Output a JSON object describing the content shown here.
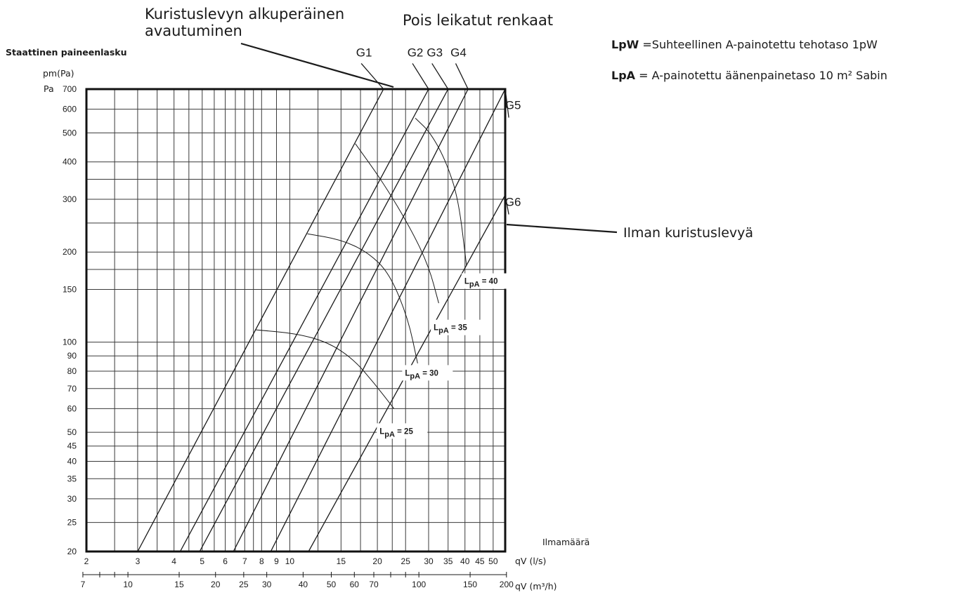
{
  "annotations": {
    "original_opening": "Kuristuslevyn alkuperäinen\navautuminen",
    "cut_rings": "Pois leikatut renkaat",
    "y_axis_title": "Staattinen paineenlasku",
    "y_unit_top": "pm(Pa)",
    "y_unit_left": "Pa",
    "x_axis_title": "Ilmamäärä",
    "x_unit_ls": "qV (l/s)",
    "x_unit_m3h": "qV (m³/h)",
    "without_plate": "Ilman kuristuslevyä"
  },
  "legend": {
    "lpw_symbol": "LpW",
    "lpw_text": "=Suhteellinen A-painotettu tehotaso 1pW",
    "lpa_symbol": "LpA",
    "lpa_text": "= A-painotettu äänenpainetaso  10 m² Sabin"
  },
  "chart_data": {
    "type": "line",
    "xscale": "log",
    "yscale": "log",
    "x_unit": "l/s",
    "y_unit": "Pa",
    "xlim": [
      2,
      55
    ],
    "ylim": [
      20,
      700
    ],
    "grid": true,
    "x_ticks_ls": [
      2,
      3,
      4,
      5,
      6,
      7,
      8,
      9,
      10,
      15,
      20,
      25,
      30,
      35,
      40,
      45,
      50
    ],
    "x_minor_grid_ls": [
      2.5,
      3.5,
      4.5,
      5.5,
      6.5,
      7.5,
      12.5,
      17.5,
      22.5
    ],
    "x_ticks_m3h": [
      7,
      10,
      15,
      20,
      25,
      30,
      40,
      50,
      60,
      70,
      100,
      150,
      200
    ],
    "x_minor_m3h": [
      8,
      9,
      80,
      90
    ],
    "y_ticks": [
      20,
      25,
      30,
      35,
      40,
      45,
      50,
      60,
      70,
      80,
      90,
      100,
      150,
      200,
      300,
      400,
      500,
      600,
      700
    ],
    "y_minor_grid": [
      175,
      250,
      350
    ],
    "series": [
      {
        "name": "G1",
        "values": [
          [
            3.0,
            20
          ],
          [
            21.0,
            700
          ]
        ]
      },
      {
        "name": "G2",
        "values": [
          [
            4.2,
            20
          ],
          [
            30.0,
            700
          ]
        ]
      },
      {
        "name": "G3",
        "values": [
          [
            4.9,
            20
          ],
          [
            35.0,
            700
          ]
        ]
      },
      {
        "name": "G4",
        "values": [
          [
            6.4,
            20
          ],
          [
            41.0,
            700
          ]
        ]
      },
      {
        "name": "G5",
        "values": [
          [
            8.6,
            20
          ],
          [
            55.0,
            700
          ]
        ]
      },
      {
        "name": "G6",
        "values": [
          [
            11.6,
            20
          ],
          [
            55.0,
            310
          ]
        ]
      }
    ],
    "series_labels": [
      {
        "text": "G1",
        "x": 18.0,
        "y": 900
      },
      {
        "text": "G2",
        "x": 27.0,
        "y": 900
      },
      {
        "text": "G3",
        "x": 31.5,
        "y": 900
      },
      {
        "text": "G4",
        "x": 38.0,
        "y": 900
      },
      {
        "text": "G5",
        "x": 58.5,
        "y": 600
      },
      {
        "text": "G6",
        "x": 58.5,
        "y": 285
      }
    ],
    "noise_curves": [
      {
        "name": "LpA = 25",
        "label": "LpA = 25",
        "values": [
          [
            7.6,
            110
          ],
          [
            10.5,
            107
          ],
          [
            13.5,
            100
          ],
          [
            16.5,
            88
          ],
          [
            19.5,
            73
          ],
          [
            22.8,
            60
          ]
        ]
      },
      {
        "name": "LpA = 30",
        "label": "LpA = 30",
        "values": [
          [
            11.5,
            230
          ],
          [
            15.0,
            220
          ],
          [
            18.5,
            200
          ],
          [
            22.0,
            170
          ],
          [
            25.5,
            120
          ],
          [
            27.5,
            85
          ]
        ]
      },
      {
        "name": "LpA = 35",
        "label": "LpA = 35",
        "values": [
          [
            16.8,
            460
          ],
          [
            21.0,
            340
          ],
          [
            26.0,
            240
          ],
          [
            30.0,
            180
          ],
          [
            32.5,
            135
          ]
        ]
      },
      {
        "name": "LpA = 40",
        "label": "LpA = 40",
        "values": [
          [
            27.0,
            560
          ],
          [
            30.5,
            500
          ],
          [
            34.5,
            400
          ],
          [
            38.0,
            300
          ],
          [
            40.5,
            180
          ]
        ]
      }
    ],
    "noise_labels": [
      {
        "sub": "pA",
        "text": "L",
        "tail": " = 25",
        "x": 22.5,
        "y": 50.5
      },
      {
        "sub": "pA",
        "text": "L",
        "tail": " = 30",
        "x": 27.5,
        "y": 79
      },
      {
        "sub": "pA",
        "text": "L",
        "tail": " = 35",
        "x": 34.5,
        "y": 112
      },
      {
        "sub": "pA",
        "text": "L",
        "tail": " = 40",
        "x": 44.0,
        "y": 160
      }
    ]
  }
}
